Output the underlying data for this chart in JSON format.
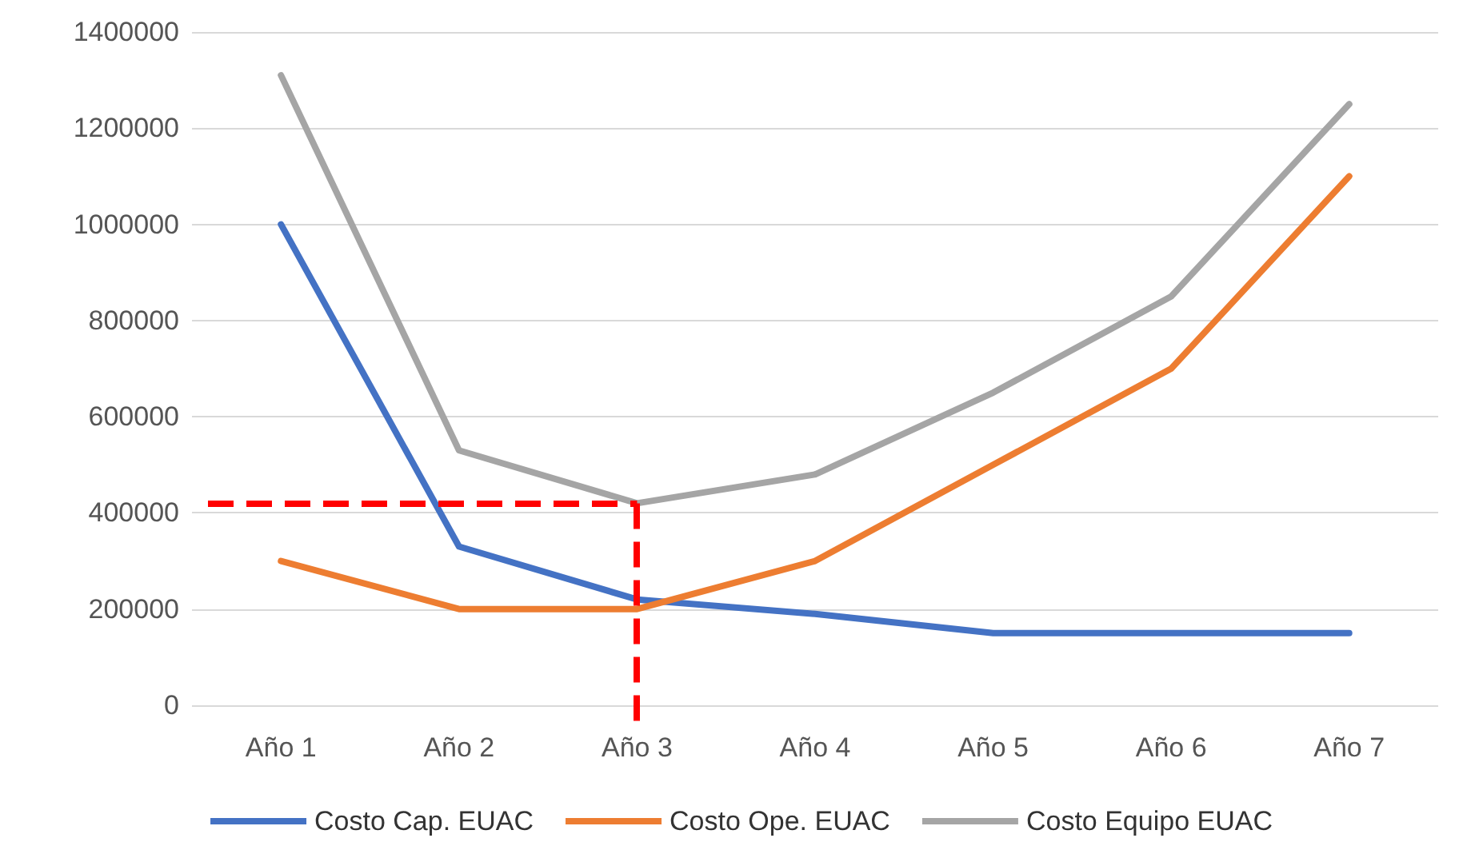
{
  "chart_data": {
    "type": "line",
    "categories": [
      "Año 1",
      "Año 2",
      "Año 3",
      "Año 4",
      "Año 5",
      "Año 6",
      "Año 7"
    ],
    "series": [
      {
        "name": "Costo Cap. EUAC",
        "color": "#4472c4",
        "values": [
          1000000,
          330000,
          220000,
          190000,
          150000,
          150000,
          150000
        ]
      },
      {
        "name": "Costo Ope. EUAC",
        "color": "#ed7d31",
        "values": [
          300000,
          200000,
          200000,
          300000,
          500000,
          700000,
          1100000
        ]
      },
      {
        "name": "Costo Equipo EUAC",
        "color": "#a5a5a5",
        "values": [
          1310000,
          530000,
          420000,
          480000,
          650000,
          850000,
          1250000
        ]
      }
    ],
    "ylim": [
      0,
      1400000
    ],
    "yticks": [
      0,
      200000,
      400000,
      600000,
      800000,
      1000000,
      1200000,
      1400000
    ],
    "grid": "y",
    "legend": "bottom",
    "marker": "none",
    "line_style": "solid",
    "ref_lines": [
      {
        "axis": "y",
        "value": 420000,
        "color": "#ff0000",
        "line_style": "dashed"
      },
      {
        "axis": "x",
        "value": "Año 3",
        "color": "#ff0000",
        "line_style": "dashed"
      }
    ]
  }
}
